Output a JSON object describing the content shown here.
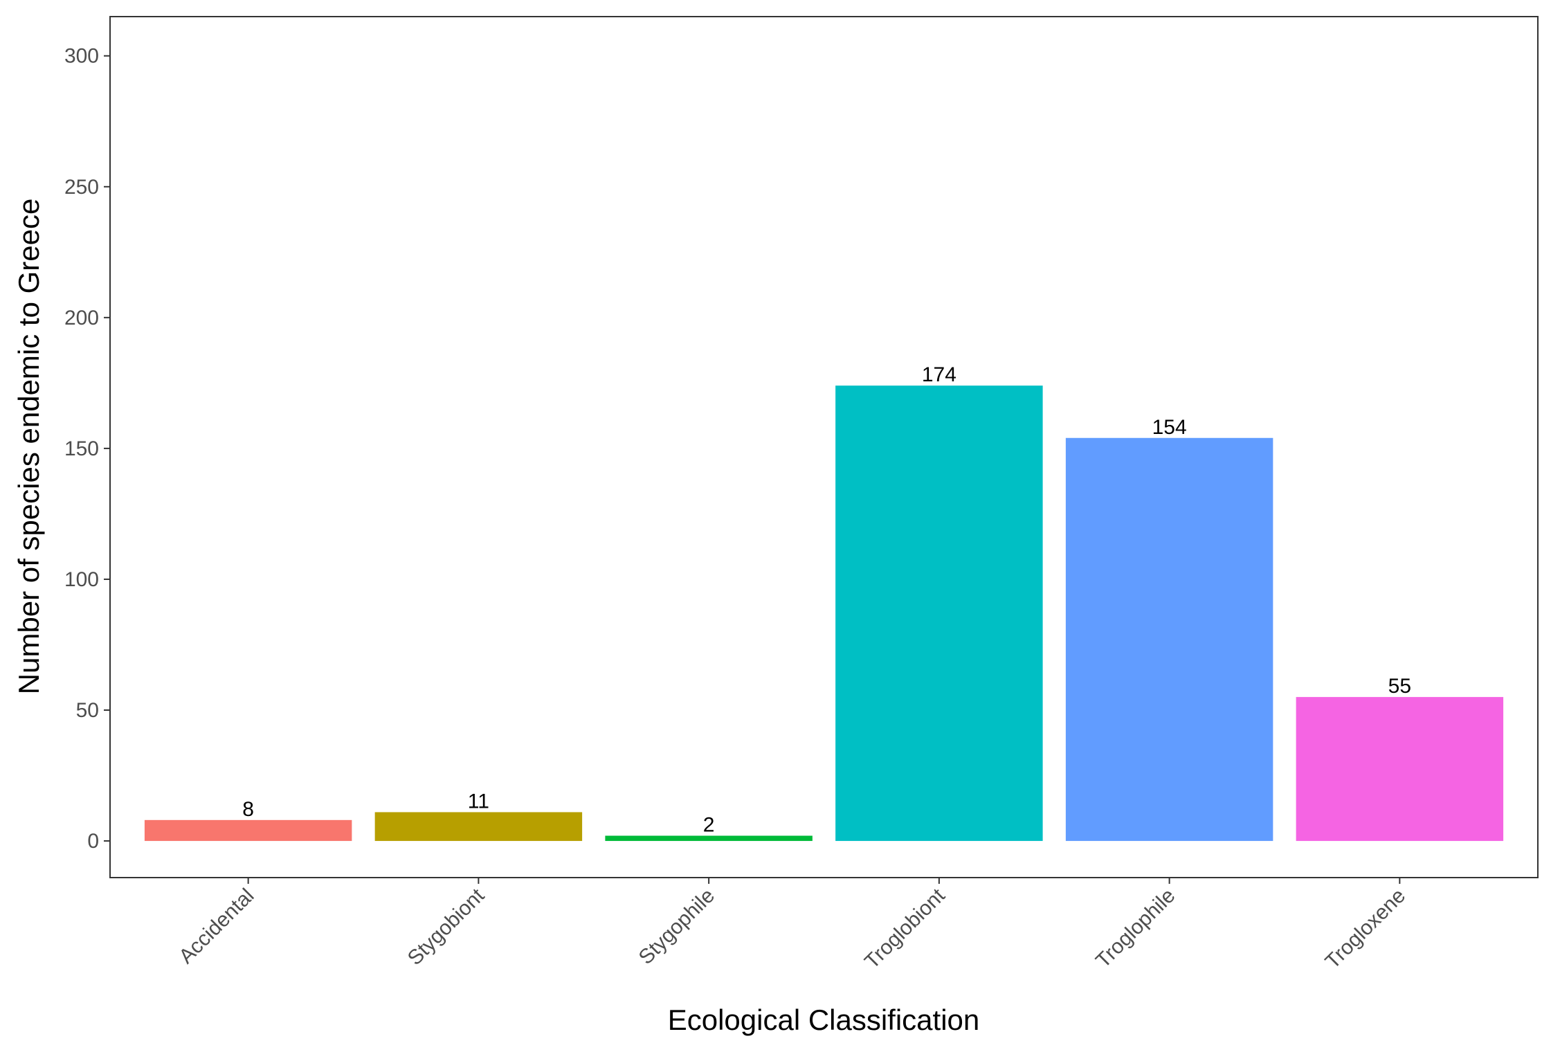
{
  "chart_data": {
    "type": "bar",
    "categories": [
      "Accidental",
      "Stygobiont",
      "Stygophile",
      "Troglobiont",
      "Troglophile",
      "Trogloxene"
    ],
    "values": [
      8,
      11,
      2,
      174,
      154,
      55
    ],
    "data_labels": [
      "8",
      "11",
      "2",
      "174",
      "154",
      "55"
    ],
    "colors": [
      "#F8766D",
      "#B79F00",
      "#00BA38",
      "#00BFC4",
      "#619CFF",
      "#F564E3"
    ],
    "xlabel": "Ecological Classification",
    "ylabel": "Number of species endemic to Greece",
    "ylim": [
      -14,
      315
    ],
    "yticks": [
      0,
      50,
      100,
      150,
      200,
      250,
      300
    ],
    "ytick_labels": [
      "0",
      "50",
      "100",
      "150",
      "200",
      "250",
      "300"
    ],
    "grid": false,
    "legend": "none"
  }
}
